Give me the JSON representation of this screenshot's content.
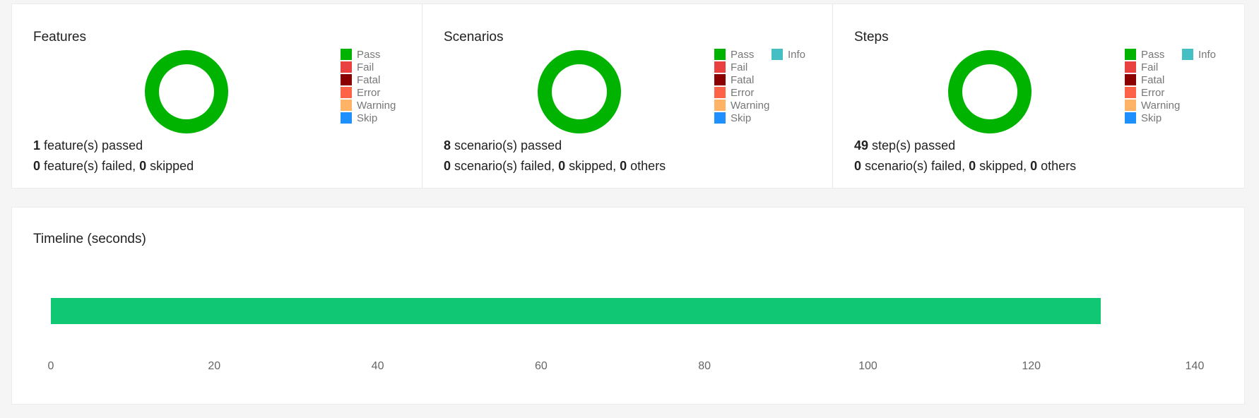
{
  "colors": {
    "pass": "#00b300",
    "fail": "#e94040",
    "fatal": "#8b0000",
    "error": "#ff6347",
    "warning": "#ffb366",
    "skip": "#1e90ff",
    "info": "#45bfc3",
    "timeline_bar": "#10c874"
  },
  "legend": {
    "pass": "Pass",
    "fail": "Fail",
    "fatal": "Fatal",
    "error": "Error",
    "warning": "Warning",
    "skip": "Skip",
    "info": "Info"
  },
  "features": {
    "title": "Features",
    "passed_count": "1",
    "passed_text": " feature(s) passed",
    "failed_count": "0",
    "failed_text": " feature(s) failed, ",
    "skipped_count": "0",
    "skipped_text": " skipped",
    "donut_pass_fraction": 1.0
  },
  "scenarios": {
    "title": "Scenarios",
    "passed_count": "8",
    "passed_text": " scenario(s) passed",
    "failed_count": "0",
    "failed_text": " scenario(s) failed, ",
    "skipped_count": "0",
    "skipped_text": " skipped, ",
    "others_count": "0",
    "others_text": " others",
    "donut_pass_fraction": 1.0
  },
  "steps": {
    "title": "Steps",
    "passed_count": "49",
    "passed_text": " step(s) passed",
    "failed_count": "0",
    "failed_text": " scenario(s) failed, ",
    "skipped_count": "0",
    "skipped_text": " skipped, ",
    "others_count": "0",
    "others_text": " others",
    "donut_pass_fraction": 1.0
  },
  "timeline": {
    "title": "Timeline (seconds)"
  },
  "chart_data": {
    "type": "bar",
    "orientation": "horizontal",
    "series": [
      {
        "start": 0,
        "end": 128.5
      }
    ],
    "xlim": [
      0,
      140
    ],
    "xticks": [
      "0",
      "20",
      "40",
      "60",
      "80",
      "100",
      "120",
      "140"
    ],
    "grid": false
  }
}
